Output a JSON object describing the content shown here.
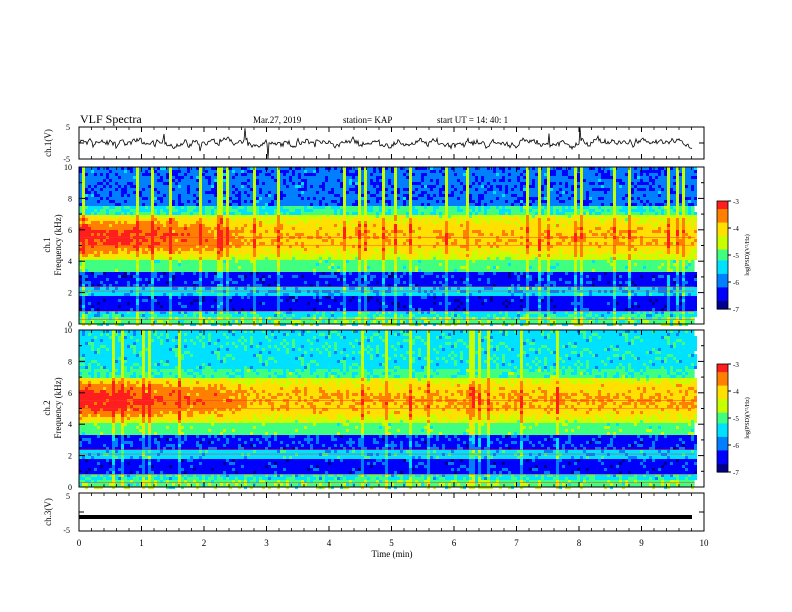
{
  "header": {
    "title": "VLF Spectra",
    "date": "Mar.27, 2019",
    "station": "station= KAP",
    "start_ut": "start  UT =   14: 40: 1"
  },
  "chart_data": [
    {
      "type": "line",
      "panel": "ch1-waveform",
      "ylabel": "ch.1(V)",
      "ytick_labels": [
        "5",
        "-5"
      ],
      "ylim": [
        -5,
        5
      ],
      "xlim": [
        0,
        10
      ],
      "series_color": "#000000"
    },
    {
      "type": "heatmap",
      "panel": "ch1-spectrogram",
      "ylabel_line1": "ch.1",
      "ylabel_line2": "Frequency  (kHz)",
      "ytick_labels": [
        "0",
        "2",
        "4",
        "6",
        "8",
        "10"
      ],
      "ylim": [
        0,
        10
      ],
      "xlim": [
        0,
        9.85
      ],
      "colorbar": {
        "label": "log(PSD)(V²/Hz)",
        "range": [
          -7,
          -3
        ],
        "tick_labels": [
          "-3",
          "-4",
          "-5",
          "-6",
          "-7"
        ]
      },
      "features": {
        "hiss_band_khz": [
          4.2,
          7.0
        ],
        "hiss_peak_khz": 5.6,
        "intense_until_min": 2.6,
        "low_power_bands_khz": [
          [
            1.0,
            1.8
          ],
          [
            2.5,
            3.4
          ]
        ]
      }
    },
    {
      "type": "heatmap",
      "panel": "ch2-spectrogram",
      "ylabel_line1": "ch.2",
      "ylabel_line2": "Frequency  (kHz)",
      "ytick_labels": [
        "0",
        "2",
        "4",
        "6",
        "8",
        "10"
      ],
      "ylim": [
        0,
        10
      ],
      "xlim": [
        0,
        9.85
      ],
      "colorbar": {
        "label": "log(PSD)(V²/Hz)",
        "range": [
          -7,
          -3
        ],
        "tick_labels": [
          "-3",
          "-4",
          "-5",
          "-6",
          "-7"
        ]
      },
      "features": {
        "hiss_band_khz": [
          4.2,
          7.0
        ],
        "hiss_peak_khz": 5.6,
        "intense_until_min": 2.6,
        "low_power_bands_khz": [
          [
            1.0,
            1.8
          ],
          [
            2.5,
            3.4
          ]
        ]
      }
    },
    {
      "type": "line",
      "panel": "ch3-waveform",
      "ylabel": "ch.3(V)",
      "ytick_labels": [
        "5",
        "-5"
      ],
      "ylim": [
        -5,
        5
      ],
      "xlim": [
        0,
        10
      ],
      "constant_value": -1.3,
      "xlabel": "Time  (min)",
      "xtick_labels": [
        "0",
        "1",
        "2",
        "3",
        "4",
        "5",
        "6",
        "7",
        "8",
        "9",
        "10"
      ]
    }
  ],
  "colormap": [
    "#00008c",
    "#0000ff",
    "#0080ff",
    "#00e0ff",
    "#40ff80",
    "#c8ff00",
    "#ffe000",
    "#ff8000",
    "#ff1e1e"
  ]
}
